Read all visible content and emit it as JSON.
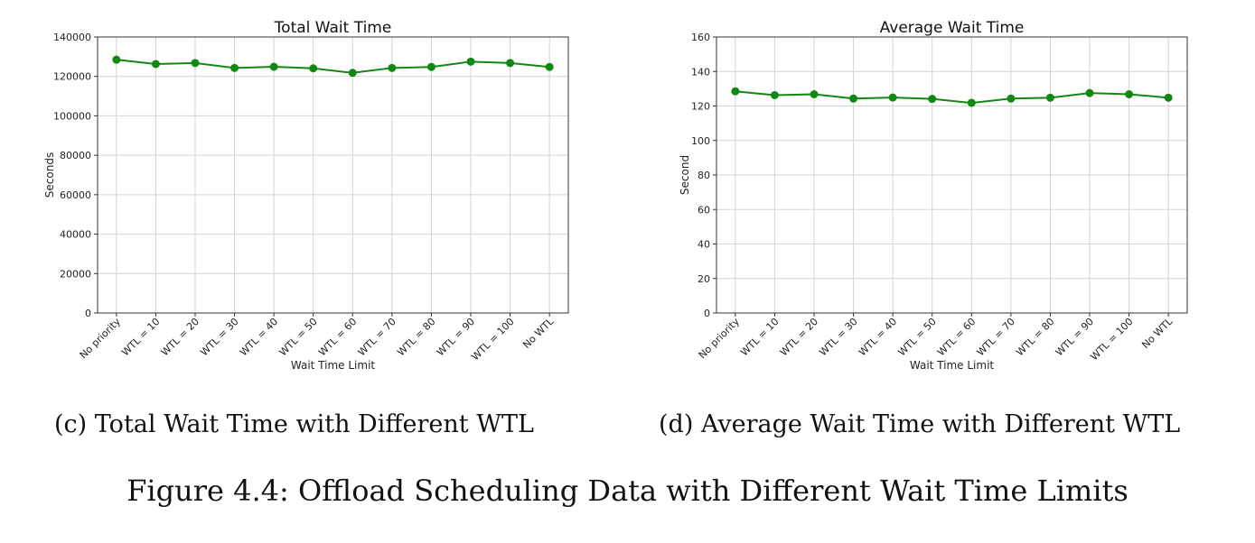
{
  "chart_data": [
    {
      "type": "line",
      "title": "Total Wait Time",
      "xlabel": "Wait Time Limit",
      "ylabel": "Seconds",
      "categories": [
        "No priority",
        "WTL = 10",
        "WTL = 20",
        "WTL = 30",
        "WTL = 40",
        "WTL = 50",
        "WTL = 60",
        "WTL = 70",
        "WTL = 80",
        "WTL = 90",
        "WTL = 100",
        "No WTL"
      ],
      "series": [
        {
          "values": [
            128500,
            126300,
            126800,
            124300,
            124900,
            124100,
            121800,
            124300,
            124800,
            127500,
            126800,
            124800
          ]
        }
      ],
      "ylim": [
        0,
        140000
      ],
      "yticks": [
        "0",
        "20000",
        "40000",
        "60000",
        "80000",
        "100000",
        "120000",
        "140000"
      ],
      "grid": true,
      "color": "#118811"
    },
    {
      "type": "line",
      "title": "Average Wait Time",
      "xlabel": "Wait Time Limit",
      "ylabel": "Second",
      "categories": [
        "No priority",
        "WTL = 10",
        "WTL = 20",
        "WTL = 30",
        "WTL = 40",
        "WTL = 50",
        "WTL = 60",
        "WTL = 70",
        "WTL = 80",
        "WTL = 90",
        "WTL = 100",
        "No WTL"
      ],
      "series": [
        {
          "values": [
            128.5,
            126.3,
            126.8,
            124.3,
            124.9,
            124.1,
            121.8,
            124.3,
            124.8,
            127.5,
            126.8,
            124.8
          ]
        }
      ],
      "ylim": [
        0,
        160
      ],
      "yticks": [
        "0",
        "20",
        "40",
        "60",
        "80",
        "100",
        "120",
        "140",
        "160"
      ],
      "grid": true,
      "color": "#118811"
    }
  ],
  "subcaptions": {
    "c": "(c) Total Wait Time with Different WTL",
    "d": "(d) Average Wait Time with Different WTL"
  },
  "caption": "Figure 4.4: Offload Scheduling Data with Different Wait Time Limits"
}
